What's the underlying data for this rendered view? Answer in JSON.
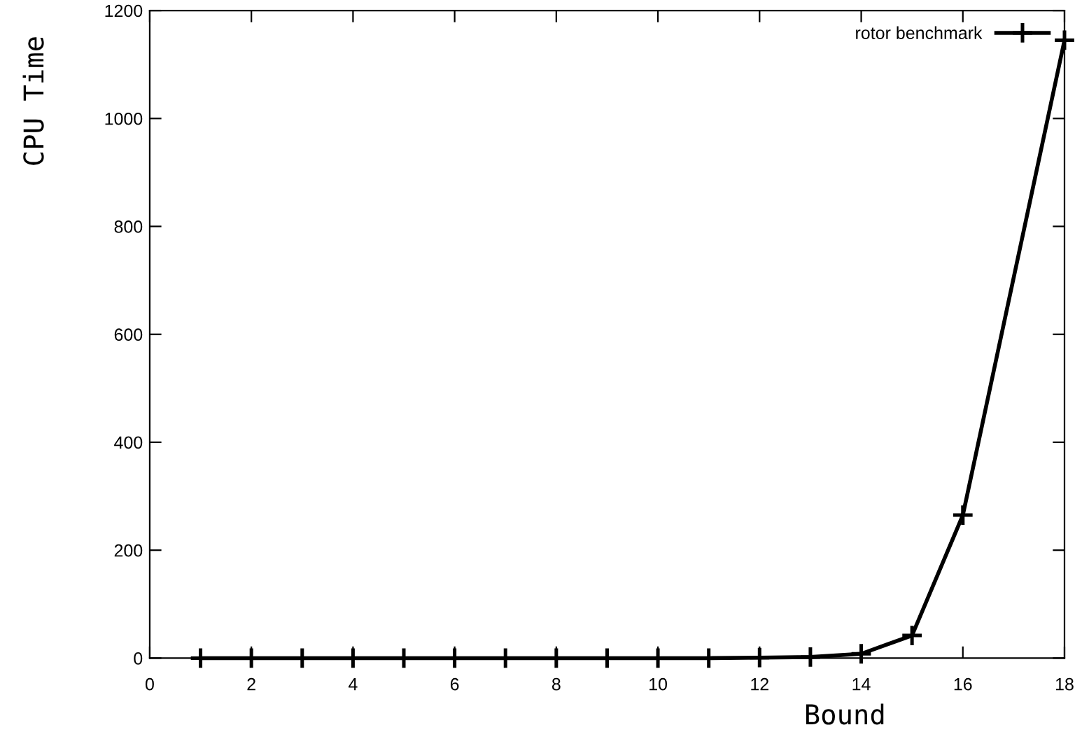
{
  "chart_data": {
    "type": "line",
    "xlabel": "Bound",
    "ylabel": "CPU Time",
    "x": [
      1,
      2,
      3,
      4,
      5,
      6,
      7,
      8,
      9,
      10,
      11,
      12,
      13,
      14,
      15,
      16,
      18
    ],
    "series": [
      {
        "name": "rotor benchmark",
        "color": "#000000",
        "values": [
          0,
          0,
          0,
          0,
          0,
          0,
          0,
          0,
          0,
          0,
          0,
          1,
          2,
          8,
          42,
          265,
          1145
        ]
      }
    ],
    "xlim": [
      0,
      18
    ],
    "xticks": [
      0,
      2,
      4,
      6,
      8,
      10,
      12,
      14,
      16,
      18
    ],
    "ylim": [
      0,
      1200
    ],
    "yticks": [
      0,
      200,
      400,
      600,
      800,
      1000,
      1200
    ],
    "grid": false,
    "legend": "top right",
    "marker": "cross",
    "line_style": "solid"
  }
}
